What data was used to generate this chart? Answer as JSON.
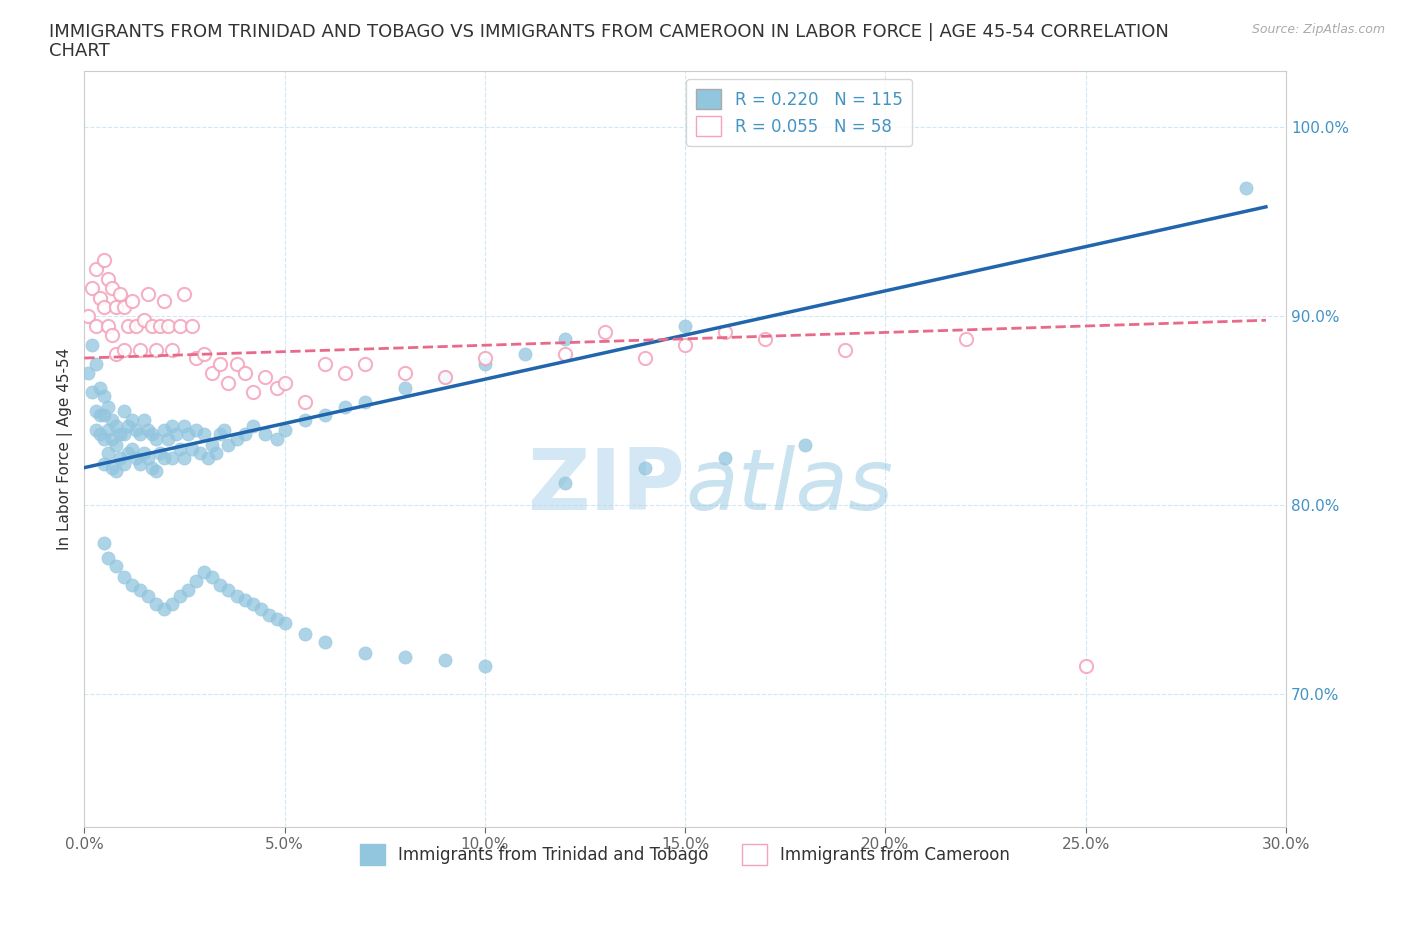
{
  "title": "IMMIGRANTS FROM TRINIDAD AND TOBAGO VS IMMIGRANTS FROM CAMEROON IN LABOR FORCE | AGE 45-54 CORRELATION\nCHART",
  "source": "Source: ZipAtlas.com",
  "ylabel": "In Labor Force | Age 45-54",
  "legend_entry1": "R = 0.220   N = 115",
  "legend_entry2": "R = 0.055   N = 58",
  "legend_label1": "Immigrants from Trinidad and Tobago",
  "legend_label2": "Immigrants from Cameroon",
  "blue_color": "#92c5de",
  "pink_color": "#f4a3bb",
  "blue_line_color": "#2166ac",
  "pink_line_color": "#e8698a",
  "watermark_zip": "ZIP",
  "watermark_atlas": "atlas",
  "xlim": [
    0.0,
    0.3
  ],
  "ylim": [
    0.63,
    1.03
  ],
  "yticks": [
    0.7,
    0.8,
    0.9,
    1.0
  ],
  "xticks": [
    0.0,
    0.05,
    0.1,
    0.15,
    0.2,
    0.25,
    0.3
  ],
  "tick_color": "#4393c3",
  "grid_color": "#d0e8f5",
  "blue_scatter_x": [
    0.001,
    0.002,
    0.002,
    0.003,
    0.003,
    0.003,
    0.004,
    0.004,
    0.004,
    0.005,
    0.005,
    0.005,
    0.005,
    0.006,
    0.006,
    0.006,
    0.007,
    0.007,
    0.007,
    0.008,
    0.008,
    0.008,
    0.009,
    0.009,
    0.01,
    0.01,
    0.01,
    0.011,
    0.011,
    0.012,
    0.012,
    0.013,
    0.013,
    0.014,
    0.014,
    0.015,
    0.015,
    0.016,
    0.016,
    0.017,
    0.017,
    0.018,
    0.018,
    0.019,
    0.02,
    0.02,
    0.021,
    0.022,
    0.022,
    0.023,
    0.024,
    0.025,
    0.025,
    0.026,
    0.027,
    0.028,
    0.029,
    0.03,
    0.031,
    0.032,
    0.033,
    0.034,
    0.035,
    0.036,
    0.038,
    0.04,
    0.042,
    0.045,
    0.048,
    0.05,
    0.055,
    0.06,
    0.065,
    0.07,
    0.08,
    0.09,
    0.1,
    0.11,
    0.12,
    0.15,
    0.005,
    0.006,
    0.008,
    0.01,
    0.012,
    0.014,
    0.016,
    0.018,
    0.02,
    0.022,
    0.024,
    0.026,
    0.028,
    0.03,
    0.032,
    0.034,
    0.036,
    0.038,
    0.04,
    0.042,
    0.044,
    0.046,
    0.048,
    0.05,
    0.055,
    0.06,
    0.07,
    0.08,
    0.09,
    0.1,
    0.12,
    0.14,
    0.16,
    0.18,
    0.29
  ],
  "blue_scatter_y": [
    0.87,
    0.885,
    0.86,
    0.875,
    0.85,
    0.84,
    0.862,
    0.848,
    0.838,
    0.858,
    0.848,
    0.835,
    0.822,
    0.852,
    0.84,
    0.828,
    0.845,
    0.835,
    0.82,
    0.842,
    0.832,
    0.818,
    0.838,
    0.825,
    0.85,
    0.838,
    0.822,
    0.842,
    0.828,
    0.845,
    0.83,
    0.84,
    0.825,
    0.838,
    0.822,
    0.845,
    0.828,
    0.84,
    0.825,
    0.838,
    0.82,
    0.835,
    0.818,
    0.828,
    0.84,
    0.825,
    0.835,
    0.842,
    0.825,
    0.838,
    0.83,
    0.842,
    0.825,
    0.838,
    0.83,
    0.84,
    0.828,
    0.838,
    0.825,
    0.832,
    0.828,
    0.838,
    0.84,
    0.832,
    0.835,
    0.838,
    0.842,
    0.838,
    0.835,
    0.84,
    0.845,
    0.848,
    0.852,
    0.855,
    0.862,
    0.868,
    0.875,
    0.88,
    0.888,
    0.895,
    0.78,
    0.772,
    0.768,
    0.762,
    0.758,
    0.755,
    0.752,
    0.748,
    0.745,
    0.748,
    0.752,
    0.755,
    0.76,
    0.765,
    0.762,
    0.758,
    0.755,
    0.752,
    0.75,
    0.748,
    0.745,
    0.742,
    0.74,
    0.738,
    0.732,
    0.728,
    0.722,
    0.72,
    0.718,
    0.715,
    0.812,
    0.82,
    0.825,
    0.832,
    0.968
  ],
  "pink_scatter_x": [
    0.001,
    0.002,
    0.003,
    0.003,
    0.004,
    0.005,
    0.005,
    0.006,
    0.006,
    0.007,
    0.007,
    0.008,
    0.008,
    0.009,
    0.01,
    0.01,
    0.011,
    0.012,
    0.013,
    0.014,
    0.015,
    0.016,
    0.017,
    0.018,
    0.019,
    0.02,
    0.021,
    0.022,
    0.024,
    0.025,
    0.027,
    0.028,
    0.03,
    0.032,
    0.034,
    0.036,
    0.038,
    0.04,
    0.042,
    0.045,
    0.048,
    0.05,
    0.055,
    0.06,
    0.065,
    0.07,
    0.08,
    0.09,
    0.1,
    0.12,
    0.13,
    0.14,
    0.15,
    0.16,
    0.17,
    0.19,
    0.22,
    0.25
  ],
  "pink_scatter_y": [
    0.9,
    0.915,
    0.925,
    0.895,
    0.91,
    0.93,
    0.905,
    0.92,
    0.895,
    0.915,
    0.89,
    0.905,
    0.88,
    0.912,
    0.905,
    0.882,
    0.895,
    0.908,
    0.895,
    0.882,
    0.898,
    0.912,
    0.895,
    0.882,
    0.895,
    0.908,
    0.895,
    0.882,
    0.895,
    0.912,
    0.895,
    0.878,
    0.88,
    0.87,
    0.875,
    0.865,
    0.875,
    0.87,
    0.86,
    0.868,
    0.862,
    0.865,
    0.855,
    0.875,
    0.87,
    0.875,
    0.87,
    0.868,
    0.878,
    0.88,
    0.892,
    0.878,
    0.885,
    0.892,
    0.888,
    0.882,
    0.888,
    0.715
  ],
  "blue_trend_x": [
    0.0,
    0.295
  ],
  "blue_trend_y": [
    0.82,
    0.958
  ],
  "pink_trend_x": [
    0.0,
    0.295
  ],
  "pink_trend_y": [
    0.878,
    0.898
  ],
  "title_fontsize": 13,
  "axis_label_fontsize": 11,
  "tick_fontsize": 11,
  "legend_fontsize": 12
}
